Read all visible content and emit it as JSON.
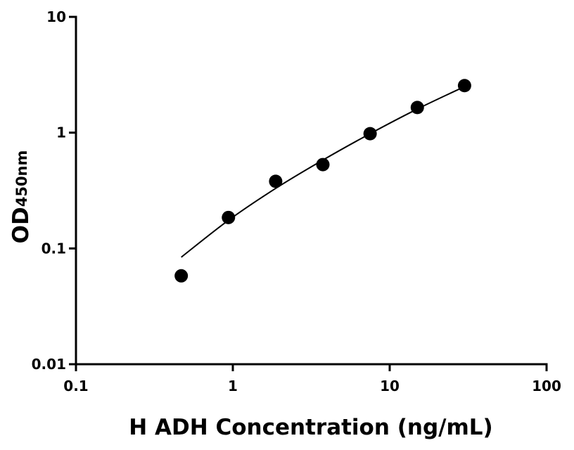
{
  "chart_data": {
    "type": "scatter",
    "xscale": "log",
    "yscale": "log",
    "xlabel": "H ADH Concentration (ng/mL)",
    "ylabel": "OD",
    "ylabel_subscript": "450nm",
    "x": [
      0.469,
      0.9375,
      1.875,
      3.75,
      7.5,
      15,
      30
    ],
    "series": [
      {
        "color": "#000000",
        "values": [
          0.058,
          0.185,
          0.38,
          0.53,
          0.98,
          1.65,
          2.55
        ]
      }
    ],
    "fit": {
      "color": "#000000",
      "x": [
        0.469,
        0.9375,
        1.875,
        3.75,
        7.5,
        15,
        30
      ],
      "values": [
        0.084,
        0.175,
        0.33,
        0.58,
        0.98,
        1.6,
        2.5
      ]
    },
    "xlim": [
      0.1,
      100
    ],
    "ylim": [
      0.01,
      10
    ],
    "xticks": [
      0.1,
      1,
      10,
      100
    ],
    "yticks": [
      0.01,
      0.1,
      1,
      10
    ],
    "grid": false
  }
}
